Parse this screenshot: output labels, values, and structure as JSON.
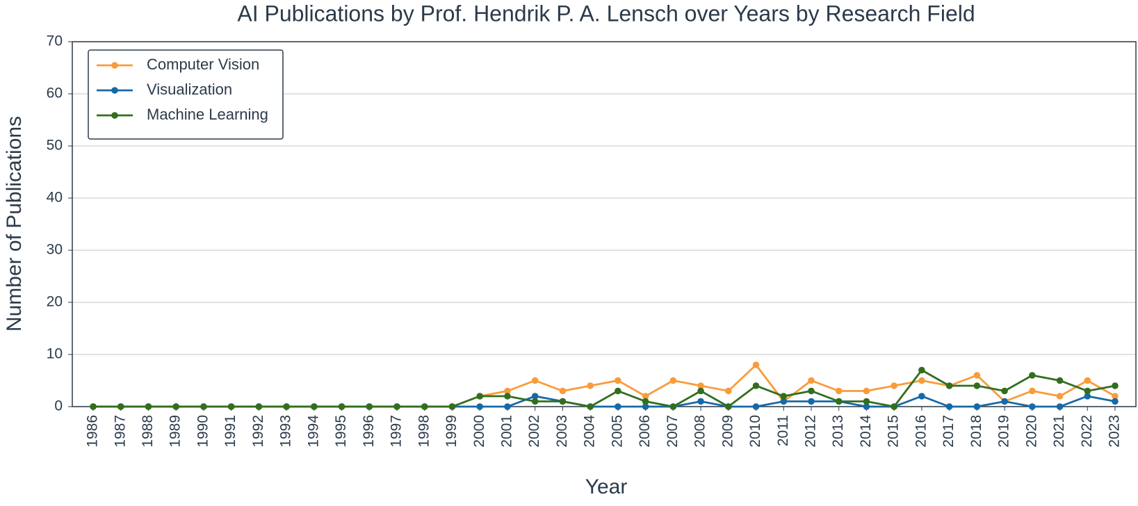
{
  "chart_data": {
    "type": "line",
    "title": "AI Publications by Prof. Hendrik P. A. Lensch over Years by Research Field",
    "x_label": "Year",
    "y_label": "Number of Publications",
    "categories": [
      "1986",
      "1987",
      "1988",
      "1989",
      "1990",
      "1991",
      "1992",
      "1993",
      "1994",
      "1995",
      "1996",
      "1997",
      "1998",
      "1999",
      "2000",
      "2001",
      "2002",
      "2003",
      "2004",
      "2005",
      "2006",
      "2007",
      "2008",
      "2009",
      "2010",
      "2011",
      "2012",
      "2013",
      "2014",
      "2015",
      "2016",
      "2017",
      "2018",
      "2019",
      "2020",
      "2021",
      "2022",
      "2023"
    ],
    "series": [
      {
        "name": "Computer Vision",
        "color": "#f89c3b",
        "values": [
          0,
          0,
          0,
          0,
          0,
          0,
          0,
          0,
          0,
          0,
          0,
          0,
          0,
          0,
          2,
          3,
          5,
          3,
          4,
          5,
          2,
          5,
          4,
          3,
          8,
          1,
          5,
          3,
          3,
          4,
          5,
          4,
          6,
          1,
          3,
          2,
          5,
          2
        ]
      },
      {
        "name": "Visualization",
        "color": "#1669a8",
        "values": [
          0,
          0,
          0,
          0,
          0,
          0,
          0,
          0,
          0,
          0,
          0,
          0,
          0,
          0,
          0,
          0,
          2,
          1,
          0,
          0,
          0,
          0,
          1,
          0,
          0,
          1,
          1,
          1,
          0,
          0,
          2,
          0,
          0,
          1,
          0,
          0,
          2,
          1
        ]
      },
      {
        "name": "Machine Learning",
        "color": "#336e1e",
        "values": [
          0,
          0,
          0,
          0,
          0,
          0,
          0,
          0,
          0,
          0,
          0,
          0,
          0,
          0,
          2,
          2,
          1,
          1,
          0,
          3,
          1,
          0,
          3,
          0,
          4,
          2,
          3,
          1,
          1,
          0,
          7,
          4,
          4,
          3,
          6,
          5,
          3,
          4
        ]
      }
    ],
    "ylim": [
      0,
      70
    ],
    "yticks": [
      0,
      10,
      20,
      30,
      40,
      50,
      60,
      70
    ],
    "grid": true,
    "legend": "upper left"
  }
}
